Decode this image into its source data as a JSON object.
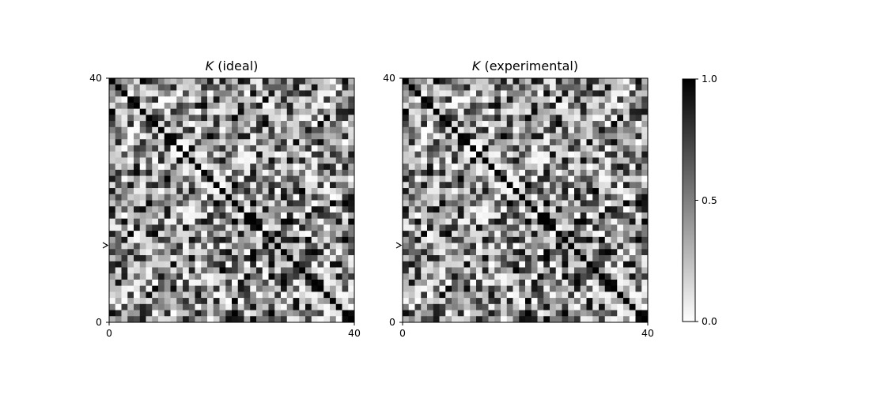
{
  "chart_data": [
    {
      "type": "heatmap",
      "title_symbol": "K",
      "title_text": " (ideal)",
      "size": 40,
      "xlim": [
        0,
        40
      ],
      "ylim": [
        0,
        40
      ],
      "xticks": [
        "0",
        "40"
      ],
      "yticks": [
        "0",
        "40"
      ],
      "marker_row": 10,
      "colormap": "gray_r",
      "seed": 7
    },
    {
      "type": "heatmap",
      "title_symbol": "K",
      "title_text": " (experimental)",
      "size": 40,
      "xlim": [
        0,
        40
      ],
      "ylim": [
        0,
        40
      ],
      "xticks": [
        "0",
        "40"
      ],
      "yticks": [
        "0",
        "40"
      ],
      "marker_row": 10,
      "colormap": "gray_r",
      "seed": 7
    }
  ],
  "colorbar": {
    "range": [
      0.0,
      1.0
    ],
    "ticks": [
      "0.0",
      "0.5",
      "1.0"
    ]
  },
  "colors": {
    "low": "#ffffff",
    "high": "#000000",
    "axis": "#000000"
  }
}
